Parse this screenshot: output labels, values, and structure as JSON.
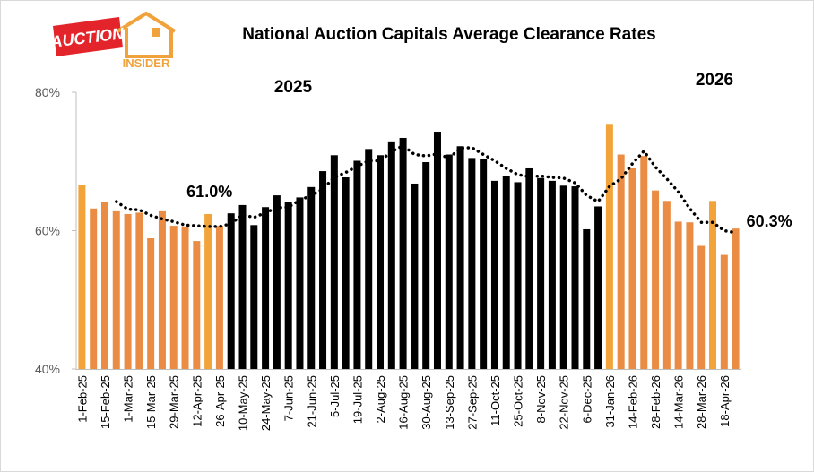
{
  "logo": {
    "text": "AUCTION",
    "subtext": "INSIDER"
  },
  "chart_data": {
    "type": "bar",
    "title": "National Auction Capitals Average Clearance Rates",
    "annotations": [
      "2025",
      "2026"
    ],
    "categories": [
      "1-Feb-25",
      null,
      "15-Feb-25",
      null,
      "1-Mar-25",
      null,
      "15-Mar-25",
      null,
      "29-Mar-25",
      null,
      "12-Apr-25",
      null,
      "26-Apr-25",
      null,
      "10-May-25",
      null,
      "24-May-25",
      null,
      "7-Jun-25",
      null,
      "21-Jun-25",
      null,
      "5-Jul-25",
      null,
      "19-Jul-25",
      null,
      "2-Aug-25",
      null,
      "16-Aug-25",
      null,
      "30-Aug-25",
      null,
      "13-Sep-25",
      null,
      "27-Sep-25",
      null,
      "11-Oct-25",
      null,
      "25-Oct-25",
      null,
      "8-Nov-25",
      null,
      "22-Nov-25",
      null,
      "6-Dec-25",
      null,
      "31-Jan-26",
      null,
      "14-Feb-26",
      null,
      "28-Feb-26",
      null,
      "14-Mar-26",
      null,
      "28-Mar-26",
      null,
      "18-Apr-26",
      null
    ],
    "values": [
      66.6,
      63.2,
      64.1,
      62.8,
      62.4,
      62.6,
      58.9,
      62.8,
      60.7,
      60.6,
      58.5,
      62.4,
      60.7,
      62.5,
      63.7,
      60.8,
      63.4,
      65.1,
      64.1,
      64.8,
      66.3,
      68.6,
      70.9,
      67.7,
      70.1,
      71.8,
      70.9,
      72.9,
      73.4,
      66.8,
      69.9,
      74.3,
      71.0,
      72.2,
      70.5,
      70.4,
      67.2,
      67.9,
      67.0,
      69.0,
      67.6,
      67.2,
      66.5,
      66.4,
      60.2,
      63.5,
      75.3,
      71.0,
      69.0,
      70.8,
      65.8,
      64.3,
      61.3,
      61.2,
      57.8,
      64.3,
      56.5,
      60.3
    ],
    "value_labels": [
      null,
      null,
      null,
      null,
      null,
      null,
      null,
      null,
      null,
      null,
      null,
      null,
      null,
      null,
      null,
      null,
      null,
      null,
      null,
      null,
      null,
      null,
      null,
      null,
      null,
      null,
      null,
      null,
      null,
      null,
      null,
      null,
      null,
      null,
      null,
      null,
      null,
      null,
      null,
      null,
      null,
      null,
      null,
      null,
      null,
      null,
      null,
      null,
      null,
      null,
      null,
      null,
      null,
      null,
      null,
      null,
      null,
      "60.3%"
    ],
    "colors": [
      "#f2a33a",
      "#ea8c43",
      "#ea8c43",
      "#ea8c43",
      "#ea8c43",
      "#ea8c43",
      "#ea8c43",
      "#ea8c43",
      "#ea8c43",
      "#ea8c43",
      "#ea8c43",
      "#f2a33a",
      "#ea8c43",
      "#000000",
      "#000000",
      "#000000",
      "#000000",
      "#000000",
      "#000000",
      "#000000",
      "#000000",
      "#000000",
      "#000000",
      "#000000",
      "#000000",
      "#000000",
      "#000000",
      "#000000",
      "#000000",
      "#000000",
      "#000000",
      "#000000",
      "#000000",
      "#000000",
      "#000000",
      "#000000",
      "#000000",
      "#000000",
      "#000000",
      "#000000",
      "#000000",
      "#000000",
      "#000000",
      "#000000",
      "#000000",
      "#000000",
      "#f2a33a",
      "#ea8c43",
      "#ea8c43",
      "#ea8c43",
      "#ea8c43",
      "#ea8c43",
      "#ea8c43",
      "#ea8c43",
      "#ea8c43",
      "#f2a33a",
      "#ea8c43",
      "#ea8c43"
    ],
    "trend": {
      "color": "#000000",
      "values": [
        null,
        null,
        null,
        64.2,
        63.1,
        63.0,
        62.2,
        61.7,
        61.3,
        60.8,
        60.7,
        60.6,
        60.6,
        61.0,
        62.3,
        61.9,
        62.6,
        63.3,
        63.4,
        64.4,
        65.1,
        66.0,
        67.7,
        68.4,
        69.3,
        70.1,
        70.1,
        71.4,
        72.3,
        71.0,
        70.8,
        71.1,
        70.5,
        71.9,
        72.0,
        71.0,
        70.1,
        69.0,
        68.1,
        67.8,
        67.9,
        67.7,
        67.6,
        66.9,
        65.1,
        64.2,
        66.4,
        67.5,
        69.7,
        71.5,
        69.2,
        67.5,
        65.6,
        63.2,
        61.2,
        61.2,
        60.0,
        59.7
      ],
      "value_labels": [
        null,
        null,
        null,
        null,
        null,
        null,
        null,
        null,
        null,
        null,
        null,
        null,
        null,
        "61.0%",
        null,
        null,
        null,
        null,
        null,
        null,
        null,
        null,
        null,
        null,
        null,
        null,
        null,
        null,
        null,
        null,
        null,
        null,
        null,
        null,
        null,
        null,
        null,
        null,
        null,
        null,
        null,
        null,
        null,
        null,
        null,
        null,
        null,
        null,
        null,
        null,
        null,
        null,
        null,
        null,
        null,
        null,
        null,
        null
      ]
    },
    "ylim": [
      40,
      80
    ],
    "yticks": [
      {
        "value": 40,
        "label": "40%"
      },
      {
        "value": 60,
        "label": "60%"
      },
      {
        "value": 80,
        "label": "80%"
      }
    ],
    "grid": false
  }
}
